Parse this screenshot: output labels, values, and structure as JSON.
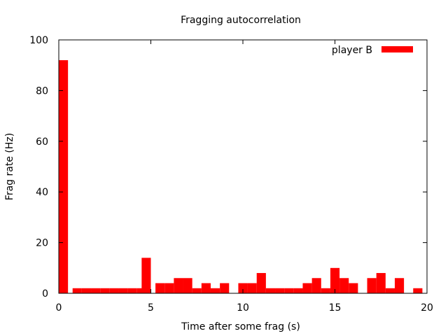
{
  "chart_data": {
    "type": "bar",
    "title": "Fragging autocorrelation",
    "xlabel": "Time after some frag (s)",
    "ylabel": "Frag rate (Hz)",
    "xlim": [
      0,
      20
    ],
    "ylim": [
      0,
      100
    ],
    "xticks": [
      "0",
      "5",
      "10",
      "15",
      "20"
    ],
    "yticks": [
      "0",
      "20",
      "40",
      "60",
      "80",
      "100"
    ],
    "bin_width": 0.5,
    "color": "#ff0000",
    "legend_position": "top-right",
    "series": [
      {
        "name": "player B",
        "x": [
          0,
          0.75,
          1.25,
          1.75,
          2.25,
          2.75,
          3.25,
          3.75,
          4.25,
          4.5,
          5.25,
          5.75,
          6.25,
          6.75,
          7.25,
          7.75,
          8.25,
          8.75,
          9.75,
          10.25,
          10.75,
          11.25,
          11.75,
          12.25,
          12.75,
          13.25,
          13.75,
          14.25,
          14.75,
          15.25,
          15.75,
          16.75,
          17.25,
          17.75,
          18.25,
          19.25
        ],
        "values": [
          92,
          2,
          2,
          2,
          2,
          2,
          2,
          2,
          2,
          14,
          4,
          4,
          6,
          6,
          2,
          4,
          2,
          4,
          4,
          4,
          8,
          2,
          2,
          2,
          2,
          4,
          6,
          2,
          10,
          6,
          4,
          6,
          8,
          2,
          6,
          2
        ]
      }
    ]
  }
}
